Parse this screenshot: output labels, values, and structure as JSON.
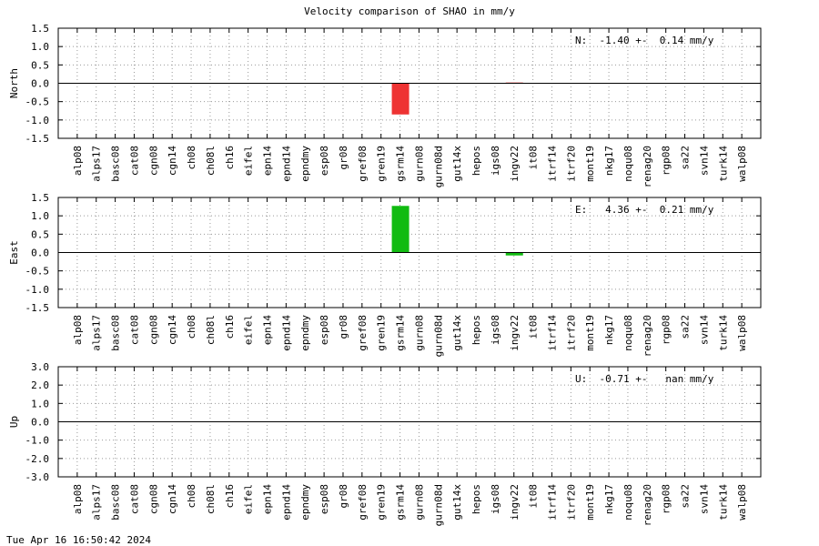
{
  "title": "Velocity comparison of SHAO in mm/y",
  "footer_timestamp": "Tue Apr 16 16:50:42 2024",
  "chart_data": [
    {
      "type": "bar",
      "ylabel": "North",
      "ylim": [
        -1.5,
        1.5
      ],
      "yticks": [
        -1.5,
        -1.0,
        -0.5,
        0.0,
        0.5,
        1.0,
        1.5
      ],
      "ytick_labels": [
        "-1.5",
        "-1.0",
        "-0.5",
        "0.0",
        "0.5",
        "1.0",
        "1.5"
      ],
      "annotation": "N:  -1.40 +-  0.14 mm/y",
      "bar_color": "#ee3333",
      "categories": [
        "alp08",
        "alps17",
        "basc08",
        "cat08",
        "cgn08",
        "cgn14",
        "ch08",
        "ch08l",
        "ch16",
        "eifel",
        "epn14",
        "epnd14",
        "epndmy",
        "esp08",
        "gr08",
        "gref08",
        "gren19",
        "gsrm14",
        "gurn08",
        "gurn08d",
        "gut14x",
        "hepos",
        "igs08",
        "ingv22",
        "it08",
        "itrf14",
        "itrf20",
        "mont19",
        "nkg17",
        "noqu08",
        "renag20",
        "rgp08",
        "sa22",
        "svn14",
        "turk14",
        "walp08"
      ],
      "values": [
        null,
        null,
        null,
        null,
        null,
        null,
        null,
        null,
        null,
        null,
        null,
        null,
        null,
        null,
        null,
        null,
        null,
        -0.85,
        null,
        null,
        null,
        null,
        null,
        0.02,
        null,
        null,
        null,
        null,
        null,
        null,
        null,
        null,
        null,
        null,
        null,
        null
      ],
      "grid": true
    },
    {
      "type": "bar",
      "ylabel": "East",
      "ylim": [
        -1.5,
        1.5
      ],
      "yticks": [
        -1.5,
        -1.0,
        -0.5,
        0.0,
        0.5,
        1.0,
        1.5
      ],
      "ytick_labels": [
        "-1.5",
        "-1.0",
        "-0.5",
        "0.0",
        "0.5",
        "1.0",
        "1.5"
      ],
      "annotation": "E:   4.36 +-  0.21 mm/y",
      "bar_color": "#11bb11",
      "categories": [
        "alp08",
        "alps17",
        "basc08",
        "cat08",
        "cgn08",
        "cgn14",
        "ch08",
        "ch08l",
        "ch16",
        "eifel",
        "epn14",
        "epnd14",
        "epndmy",
        "esp08",
        "gr08",
        "gref08",
        "gren19",
        "gsrm14",
        "gurn08",
        "gurn08d",
        "gut14x",
        "hepos",
        "igs08",
        "ingv22",
        "it08",
        "itrf14",
        "itrf20",
        "mont19",
        "nkg17",
        "noqu08",
        "renag20",
        "rgp08",
        "sa22",
        "svn14",
        "turk14",
        "walp08"
      ],
      "values": [
        null,
        null,
        null,
        null,
        null,
        null,
        null,
        null,
        null,
        null,
        null,
        null,
        null,
        null,
        null,
        null,
        null,
        1.27,
        null,
        null,
        null,
        null,
        null,
        -0.08,
        null,
        null,
        null,
        null,
        null,
        null,
        null,
        null,
        null,
        null,
        null,
        null
      ],
      "grid": true
    },
    {
      "type": "bar",
      "ylabel": "Up",
      "ylim": [
        -3.0,
        3.0
      ],
      "yticks": [
        -3.0,
        -2.0,
        -1.0,
        0.0,
        1.0,
        2.0,
        3.0
      ],
      "ytick_labels": [
        "-3.0",
        "-2.0",
        "-1.0",
        "0.0",
        "1.0",
        "2.0",
        "3.0"
      ],
      "annotation": "U:  -0.71 +-   nan mm/y",
      "bar_color": "#3333ee",
      "categories": [
        "alp08",
        "alps17",
        "basc08",
        "cat08",
        "cgn08",
        "cgn14",
        "ch08",
        "ch08l",
        "ch16",
        "eifel",
        "epn14",
        "epnd14",
        "epndmy",
        "esp08",
        "gr08",
        "gref08",
        "gren19",
        "gsrm14",
        "gurn08",
        "gurn08d",
        "gut14x",
        "hepos",
        "igs08",
        "ingv22",
        "it08",
        "itrf14",
        "itrf20",
        "mont19",
        "nkg17",
        "noqu08",
        "renag20",
        "rgp08",
        "sa22",
        "svn14",
        "turk14",
        "walp08"
      ],
      "values": [
        null,
        null,
        null,
        null,
        null,
        null,
        null,
        null,
        null,
        null,
        null,
        null,
        null,
        null,
        null,
        null,
        null,
        null,
        null,
        null,
        null,
        null,
        null,
        null,
        null,
        null,
        null,
        null,
        null,
        null,
        null,
        null,
        null,
        null,
        null,
        null
      ],
      "grid": true
    }
  ]
}
